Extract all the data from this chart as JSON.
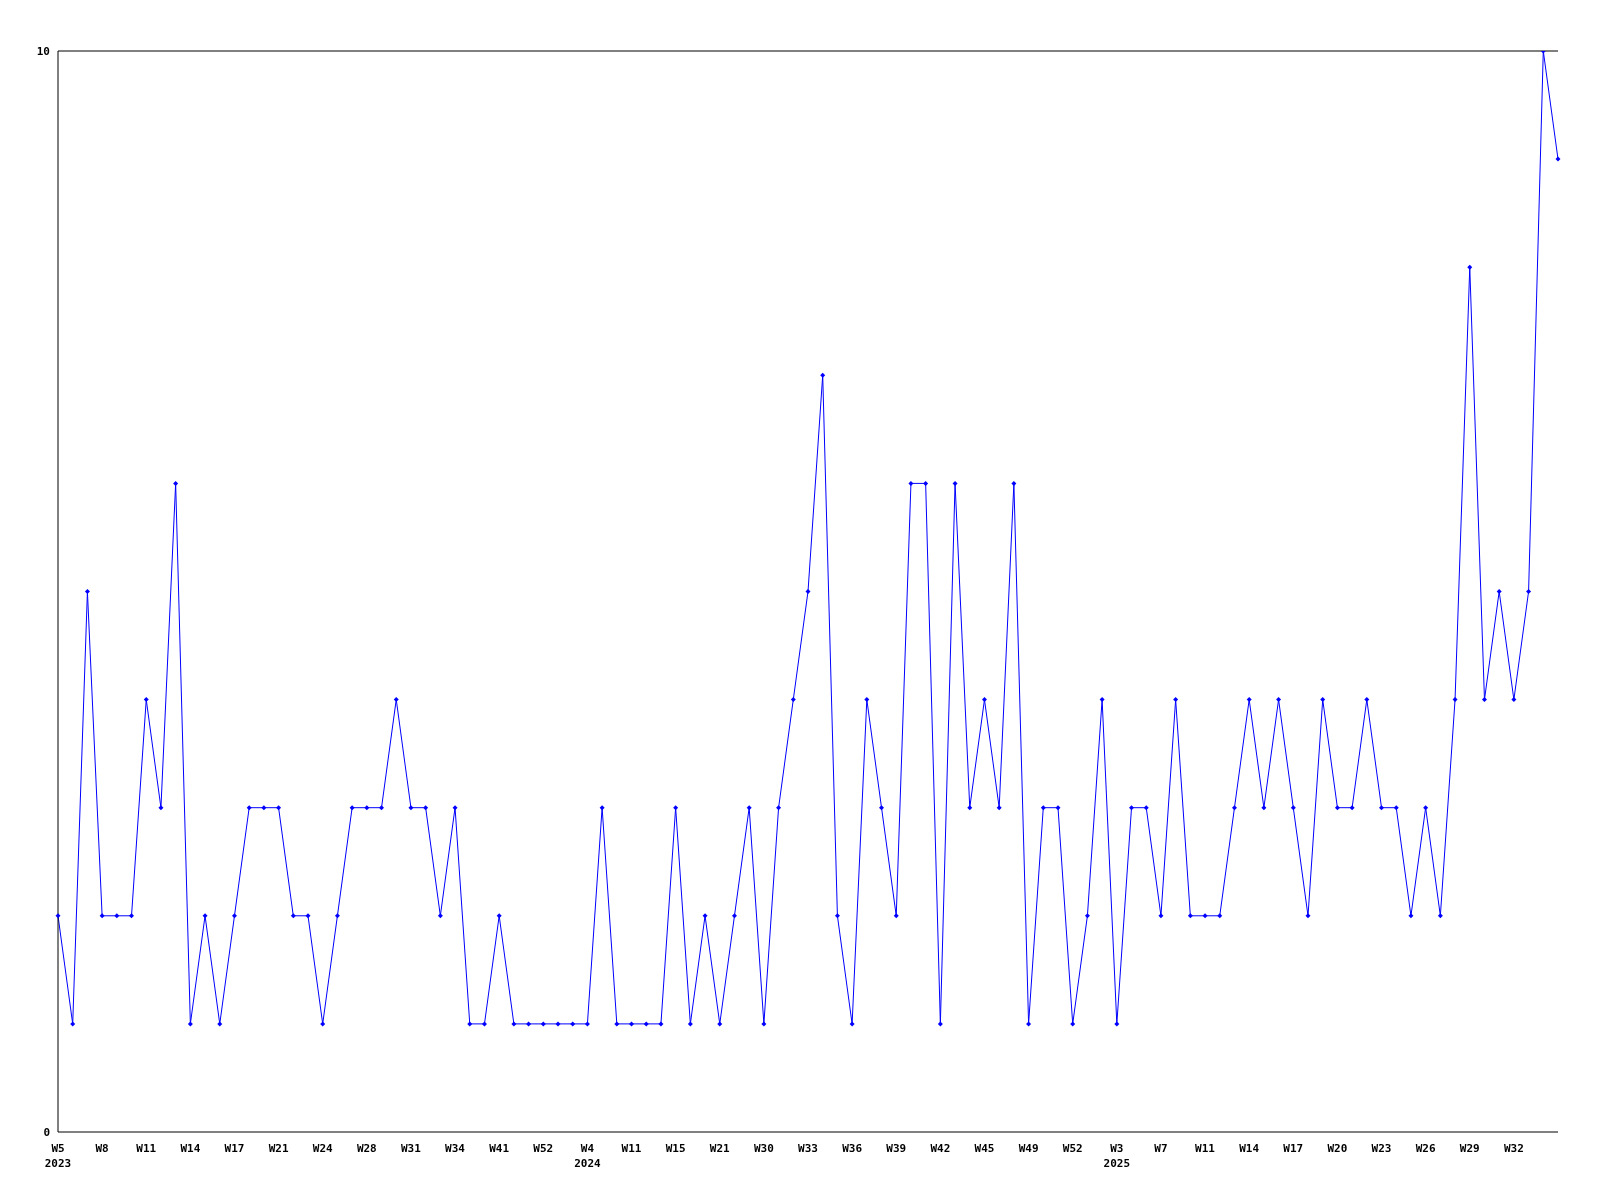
{
  "chart_data": {
    "type": "line",
    "categories": [
      "W5\n2023",
      null,
      null,
      "W8",
      null,
      null,
      "W11",
      null,
      null,
      "W14",
      null,
      null,
      "W17",
      null,
      null,
      "W21",
      null,
      null,
      "W24",
      null,
      null,
      "W28",
      null,
      null,
      "W31",
      null,
      null,
      "W34",
      null,
      null,
      "W41",
      null,
      null,
      "W52",
      null,
      null,
      "W4\n2024",
      null,
      null,
      "W11",
      null,
      null,
      "W15",
      null,
      null,
      "W21",
      null,
      null,
      "W30",
      null,
      null,
      "W33",
      null,
      null,
      "W36",
      null,
      null,
      "W39",
      null,
      null,
      "W42",
      null,
      null,
      "W45",
      null,
      null,
      "W49",
      null,
      null,
      "W52",
      null,
      null,
      "W3\n2025",
      null,
      null,
      "W7",
      null,
      null,
      "W11",
      null,
      null,
      "W14",
      null,
      null,
      "W17",
      null,
      null,
      "W20",
      null,
      null,
      "W23",
      null,
      null,
      "W26",
      null,
      null,
      "W29",
      null,
      null,
      "W32",
      null,
      null,
      null
    ],
    "series": [
      {
        "color": "#0000ff",
        "values": [
          2,
          1,
          5,
          2,
          2,
          2,
          4,
          3,
          6,
          1,
          2,
          1,
          2,
          3,
          3,
          3,
          2,
          2,
          1,
          2,
          3,
          3,
          3,
          4,
          3,
          3,
          2,
          3,
          1,
          1,
          2,
          1,
          1,
          1,
          1,
          1,
          1,
          3,
          1,
          1,
          1,
          1,
          3,
          1,
          2,
          1,
          2,
          3,
          1,
          3,
          4,
          5,
          7,
          2,
          1,
          4,
          3,
          2,
          6,
          6,
          1,
          6,
          3,
          4,
          3,
          6,
          1,
          3,
          3,
          1,
          2,
          4,
          1,
          3,
          3,
          2,
          4,
          2,
          2,
          2,
          3,
          4,
          3,
          4,
          3,
          2,
          4,
          3,
          3,
          4,
          3,
          3,
          2,
          3,
          2,
          4,
          8,
          4,
          5,
          4,
          5,
          10,
          9
        ]
      }
    ],
    "ylim": [
      0,
      10
    ],
    "yticks": [
      0,
      10
    ],
    "grid": false,
    "marker": "diamond",
    "line_style": "solid"
  }
}
